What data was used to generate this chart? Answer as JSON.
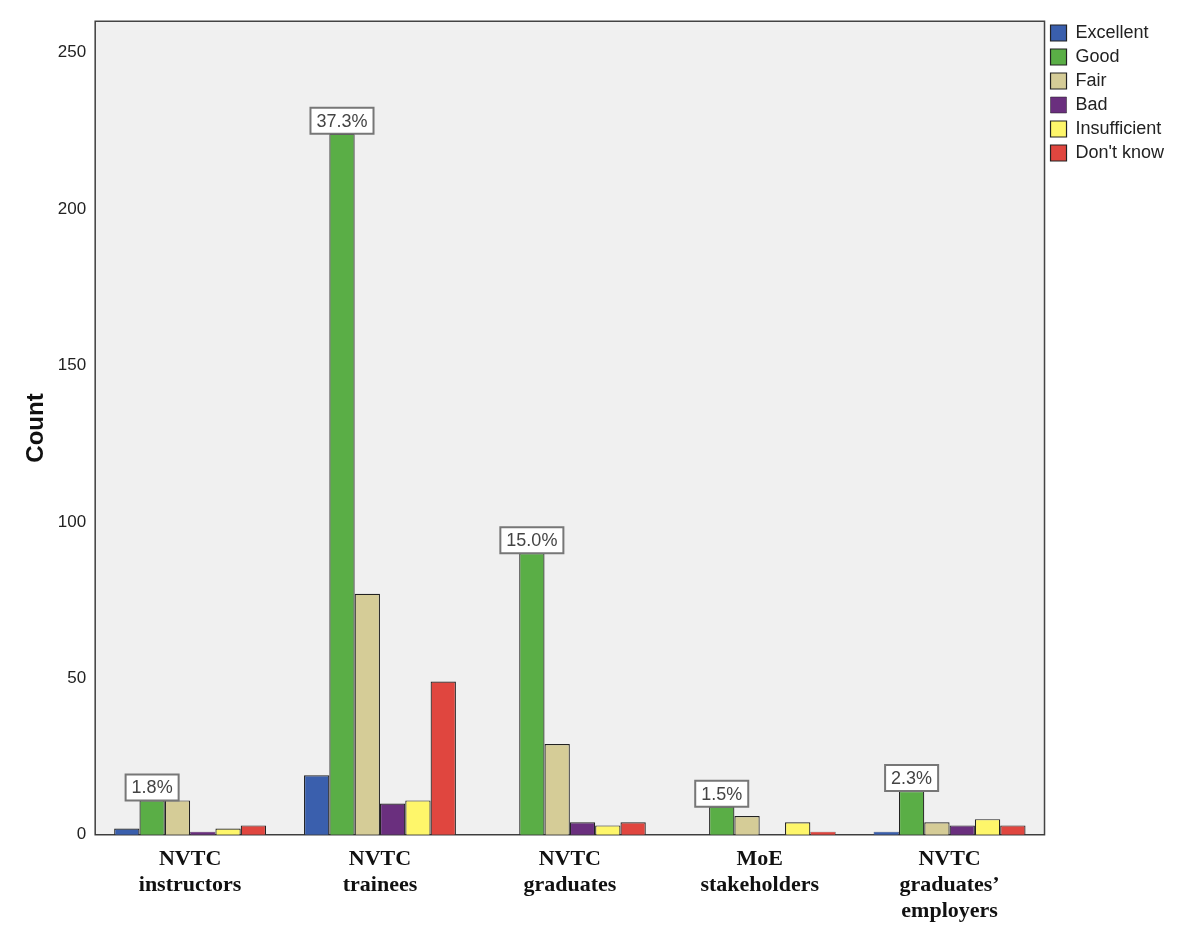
{
  "chart_data": {
    "type": "bar",
    "ylabel": "Count",
    "categories": [
      "NVTC instructors",
      "NVTC trainees",
      "NVTC graduates",
      "MoE stakeholders",
      "NVTC graduates’ employers"
    ],
    "series": [
      {
        "name": "Excellent",
        "color": "#3a5fad",
        "values": [
          2,
          19,
          0,
          0,
          1
        ]
      },
      {
        "name": "Good",
        "color": "#5aae46",
        "values": [
          11,
          224,
          90,
          9,
          14
        ]
      },
      {
        "name": "Fair",
        "color": "#d5cc97",
        "values": [
          11,
          77,
          29,
          6,
          4
        ]
      },
      {
        "name": "Bad",
        "color": "#6a2f7e",
        "values": [
          1,
          10,
          4,
          0,
          3
        ]
      },
      {
        "name": "Insufficient",
        "color": "#fef66a",
        "values": [
          2,
          11,
          3,
          4,
          5
        ]
      },
      {
        "name": "Don't know",
        "color": "#e0463f",
        "values": [
          3,
          49,
          4,
          1,
          3
        ]
      }
    ],
    "ylim": [
      0,
      260
    ],
    "yticks": [
      0,
      50,
      100,
      150,
      200,
      250
    ],
    "grid": false,
    "legend": "right",
    "annotations": [
      "1.8%",
      "37.3%",
      "15.0%",
      "1.5%",
      "2.3%"
    ]
  }
}
